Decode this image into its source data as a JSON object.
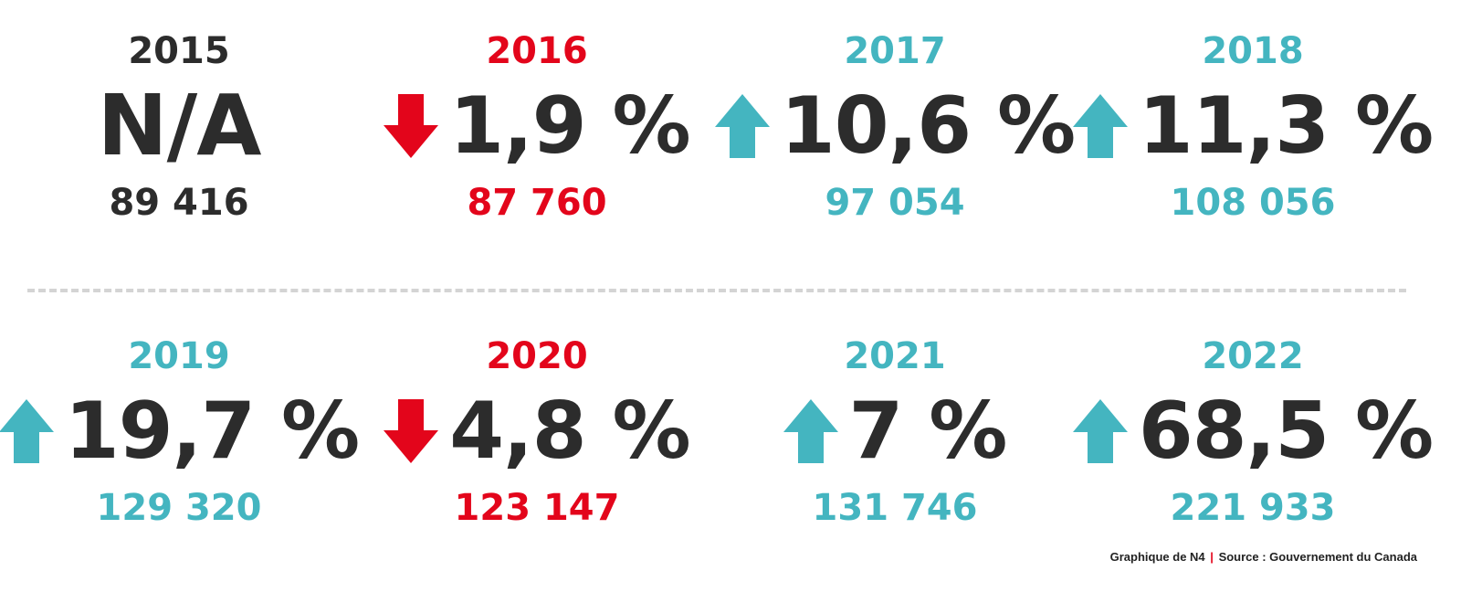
{
  "chart_data": {
    "type": "table",
    "colors": {
      "up": "#44b5c0",
      "down": "#e3051b",
      "neutral": "#2c2c2c",
      "divider": "#d4d4d4"
    },
    "items": [
      {
        "year": "2015",
        "change": "N/A",
        "count": "89 416",
        "trend": "none"
      },
      {
        "year": "2016",
        "change": "1,9 %",
        "count": "87 760",
        "trend": "down"
      },
      {
        "year": "2017",
        "change": "10,6 %",
        "count": "97 054",
        "trend": "up"
      },
      {
        "year": "2018",
        "change": "11,3 %",
        "count": "108 056",
        "trend": "up"
      },
      {
        "year": "2019",
        "change": "19,7 %",
        "count": "129 320",
        "trend": "up"
      },
      {
        "year": "2020",
        "change": "4,8 %",
        "count": "123 147",
        "trend": "down"
      },
      {
        "year": "2021",
        "change": "7 %",
        "count": "131 746",
        "trend": "up"
      },
      {
        "year": "2022",
        "change": "68,5 %",
        "count": "221 933",
        "trend": "up"
      }
    ]
  },
  "footer": {
    "credit": "Graphique de N4",
    "separator": "|",
    "source": "Source : Gouvernement du Canada"
  }
}
